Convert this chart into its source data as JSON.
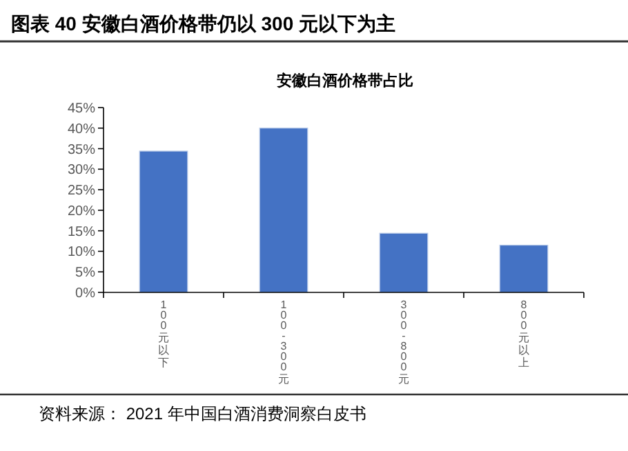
{
  "chart_data": {
    "type": "bar",
    "title": "图表 40  安徽白酒价格带仍以 300 元以下为主",
    "subtitle": "安徽白酒价格带占比",
    "categories": [
      "100元以下",
      "100-300元",
      "300-800元",
      "800元以上"
    ],
    "values": [
      34.4,
      40,
      14.4,
      11.5
    ],
    "color": "#4472c4",
    "ylim": [
      0,
      45
    ],
    "yticks": [
      {
        "value": 0,
        "label": "0%"
      },
      {
        "value": 5,
        "label": "5%"
      },
      {
        "value": 10,
        "label": "10%"
      },
      {
        "value": 15,
        "label": "15%"
      },
      {
        "value": 20,
        "label": "20%"
      },
      {
        "value": 25,
        "label": "25%"
      },
      {
        "value": 30,
        "label": "30%"
      },
      {
        "value": 35,
        "label": "35%"
      },
      {
        "value": 40,
        "label": "40%"
      },
      {
        "value": 45,
        "label": "45%"
      }
    ],
    "grid": false,
    "annotations": [
      "资料来源：  2021 年中国白酒消费洞察白皮书"
    ]
  }
}
